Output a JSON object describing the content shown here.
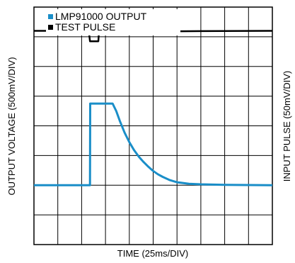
{
  "chart_data": {
    "type": "line",
    "xlabel": "TIME (25ms/DIV)",
    "ylabel": "OUTPUT VOLTAGE (500mV/DIV)",
    "ylabel_right": "INPUT PULSE (50mV/DIV)",
    "grid": true,
    "divisions": {
      "x": 10,
      "y": 8
    },
    "xlim": [
      0,
      10
    ],
    "ylim": [
      0,
      8
    ],
    "legend_placement": "top-left",
    "legend": [
      {
        "name": "LMP91000 OUTPUT",
        "color": "#1a8ec8"
      },
      {
        "name": "TEST PULSE",
        "color": "#000000"
      }
    ],
    "series": [
      {
        "name": "LMP91000 OUTPUT",
        "color": "#1a8ec8",
        "x": [
          0,
          2.35,
          2.36,
          2.5,
          3.3,
          3.45,
          3.6,
          3.8,
          4.0,
          4.2,
          4.4,
          4.6,
          4.8,
          5.0,
          5.2,
          5.4,
          5.7,
          6.0,
          6.5,
          7.0,
          8.0,
          10
        ],
        "y": [
          2.0,
          2.0,
          4.75,
          4.75,
          4.75,
          4.5,
          4.17,
          3.77,
          3.45,
          3.18,
          2.96,
          2.78,
          2.62,
          2.48,
          2.37,
          2.28,
          2.17,
          2.1,
          2.05,
          2.03,
          2.01,
          2.0
        ]
      },
      {
        "name": "TEST PULSE",
        "color": "#000000",
        "x": [
          0,
          2.3,
          2.35,
          2.4,
          2.5,
          2.7,
          2.73,
          3.0,
          5.0,
          7.0,
          10
        ],
        "y": [
          7.2,
          7.2,
          6.85,
          6.85,
          6.85,
          6.85,
          7.2,
          7.2,
          7.18,
          7.19,
          7.2
        ]
      }
    ]
  }
}
